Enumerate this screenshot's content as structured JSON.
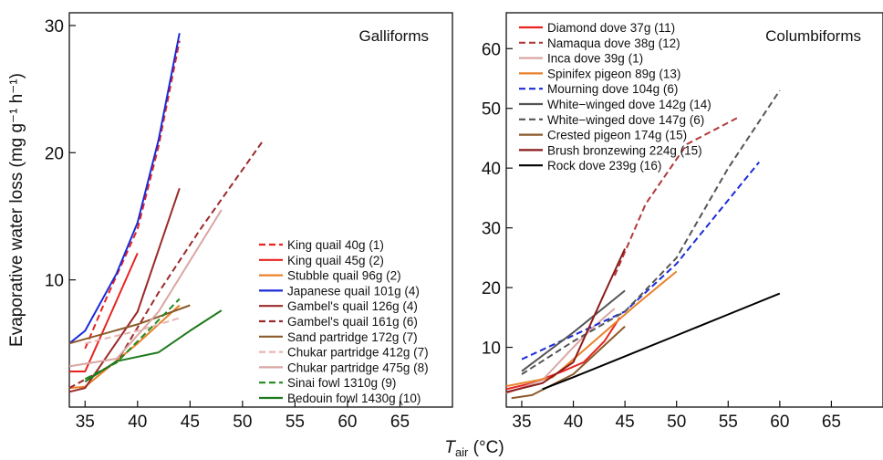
{
  "figure": {
    "ylabel": "Evaporative water loss (mg g⁻¹ h⁻¹)",
    "xlabel_main": "T",
    "xlabel_sub": "air",
    "xlabel_unit": " (°C)"
  },
  "chart_data": [
    {
      "type": "line",
      "title": "Galliforms",
      "xlim": [
        33.5,
        70
      ],
      "ylim": [
        0,
        31
      ],
      "xticks": [
        35,
        40,
        45,
        50,
        55,
        60,
        65
      ],
      "yticks": [
        10,
        20,
        30
      ],
      "legend_position": "bottom-right",
      "grid": false,
      "series": [
        {
          "name": "King quail 40g (1)",
          "color": "#e8231f",
          "dash": "dashed",
          "x": [
            35,
            37,
            40,
            42,
            44
          ],
          "y": [
            4.6,
            8.5,
            14.0,
            20.5,
            28.8
          ]
        },
        {
          "name": "King quail 45g (2)",
          "color": "#e8231f",
          "dash": "solid",
          "x": [
            33.5,
            35,
            37,
            40
          ],
          "y": [
            2.8,
            2.8,
            6.5,
            12.1
          ]
        },
        {
          "name": "Stubble quail 96g (2)",
          "color": "#e8822a",
          "dash": "solid",
          "x": [
            33.5,
            35,
            40,
            44
          ],
          "y": [
            1.5,
            1.6,
            5.0,
            8.0
          ]
        },
        {
          "name": "Japanese quail 101g (4)",
          "color": "#1a2bd9",
          "dash": "solid",
          "x": [
            33.5,
            35,
            38,
            40,
            42,
            44
          ],
          "y": [
            5.0,
            6.0,
            10.5,
            14.5,
            21.0,
            29.4
          ]
        },
        {
          "name": "Gambel's quail 126g (4)",
          "color": "#9b2a2a",
          "dash": "solid",
          "x": [
            33.5,
            35,
            40,
            44
          ],
          "y": [
            1.2,
            1.5,
            7.5,
            17.2
          ]
        },
        {
          "name": "Gambel's quail 161g (6)",
          "color": "#9b2a2a",
          "dash": "dashed",
          "x": [
            33.5,
            38,
            42,
            46,
            52
          ],
          "y": [
            1.5,
            3.5,
            9.0,
            14.0,
            21.0
          ]
        },
        {
          "name": "Sand partridge 172g (7)",
          "color": "#8b5a2b",
          "dash": "solid",
          "x": [
            33.5,
            40,
            45
          ],
          "y": [
            5.0,
            6.5,
            8.0
          ]
        },
        {
          "name": "Chukar partridge 412g (7)",
          "color": "#e8b4b0",
          "dash": "dashed",
          "x": [
            35,
            40,
            44
          ],
          "y": [
            5.0,
            6.0,
            7.0
          ]
        },
        {
          "name": "Chukar partridge 475g (8)",
          "color": "#d9a6a3",
          "dash": "solid",
          "x": [
            33.5,
            38,
            42,
            48
          ],
          "y": [
            3.2,
            3.8,
            7.5,
            15.5
          ]
        },
        {
          "name": "Sinai fowl 1310g (9)",
          "color": "#1e8a1e",
          "dash": "dashed",
          "x": [
            35,
            38,
            41,
            44
          ],
          "y": [
            2.2,
            3.5,
            6.0,
            8.5
          ]
        },
        {
          "name": "Bedouin fowl 1430g (10)",
          "color": "#1e7a1e",
          "dash": "solid",
          "x": [
            35,
            38,
            42,
            45,
            48
          ],
          "y": [
            2.0,
            3.6,
            4.3,
            6.0,
            7.6
          ]
        }
      ]
    },
    {
      "type": "line",
      "title": "Columbiforms",
      "xlim": [
        33.5,
        70
      ],
      "ylim": [
        0,
        66
      ],
      "xticks": [
        35,
        40,
        45,
        50,
        55,
        60,
        65
      ],
      "yticks": [
        10,
        20,
        30,
        40,
        50,
        60
      ],
      "legend_position": "top-left",
      "grid": false,
      "series": [
        {
          "name": "Diamond dove 37g (11)",
          "color": "#e8231f",
          "dash": "solid",
          "x": [
            33.5,
            36,
            39,
            41,
            43,
            44.5
          ],
          "y": [
            3.0,
            4.0,
            6.0,
            7.5,
            11.0,
            15.0
          ]
        },
        {
          "name": "Namaqua dove 38g (12)",
          "color": "#b03a3a",
          "dash": "dashed",
          "x": [
            44,
            47,
            51,
            56
          ],
          "y": [
            22.0,
            34.0,
            44.0,
            48.5
          ]
        },
        {
          "name": "Inca dove 39g (1)",
          "color": "#d9a6a3",
          "dash": "solid",
          "x": [
            33.5,
            37,
            40,
            42,
            44
          ],
          "y": [
            2.3,
            4.5,
            10.0,
            13.5,
            16.5
          ]
        },
        {
          "name": "Spinifex pigeon 89g (13)",
          "color": "#e8822a",
          "dash": "solid",
          "x": [
            33.5,
            38,
            42,
            46,
            50
          ],
          "y": [
            3.5,
            5.0,
            11.0,
            17.0,
            22.7
          ]
        },
        {
          "name": "Mourning dove 104g (6)",
          "color": "#1a2bd9",
          "dash": "dashed",
          "x": [
            35,
            40,
            45,
            50,
            58
          ],
          "y": [
            8.0,
            12.0,
            16.0,
            24.0,
            41.0
          ]
        },
        {
          "name": "White−winged dove 142g (14)",
          "color": "#555555",
          "dash": "solid",
          "x": [
            35,
            40,
            45
          ],
          "y": [
            6.0,
            12.5,
            19.5
          ]
        },
        {
          "name": "White−winged dove 147g (6)",
          "color": "#555555",
          "dash": "dashed",
          "x": [
            35,
            40,
            45,
            50,
            55,
            60
          ],
          "y": [
            5.5,
            11.0,
            16.0,
            25.0,
            40.0,
            53.0
          ]
        },
        {
          "name": "Crested pigeon 174g (15)",
          "color": "#8b5a2b",
          "dash": "solid",
          "x": [
            34,
            36,
            40,
            45
          ],
          "y": [
            1.5,
            2.0,
            5.5,
            13.5
          ]
        },
        {
          "name": "Brush bronzewing 224g (15)",
          "color": "#8b1a1a",
          "dash": "solid",
          "x": [
            33.5,
            37,
            40,
            43,
            45
          ],
          "y": [
            2.5,
            4.0,
            7.5,
            19.0,
            26.5
          ]
        },
        {
          "name": "Rock dove 239g (16)",
          "color": "#000000",
          "dash": "solid",
          "x": [
            37,
            40,
            45,
            50,
            55,
            60
          ],
          "y": [
            3.0,
            5.0,
            8.5,
            12.0,
            15.5,
            19.0
          ]
        }
      ]
    }
  ]
}
